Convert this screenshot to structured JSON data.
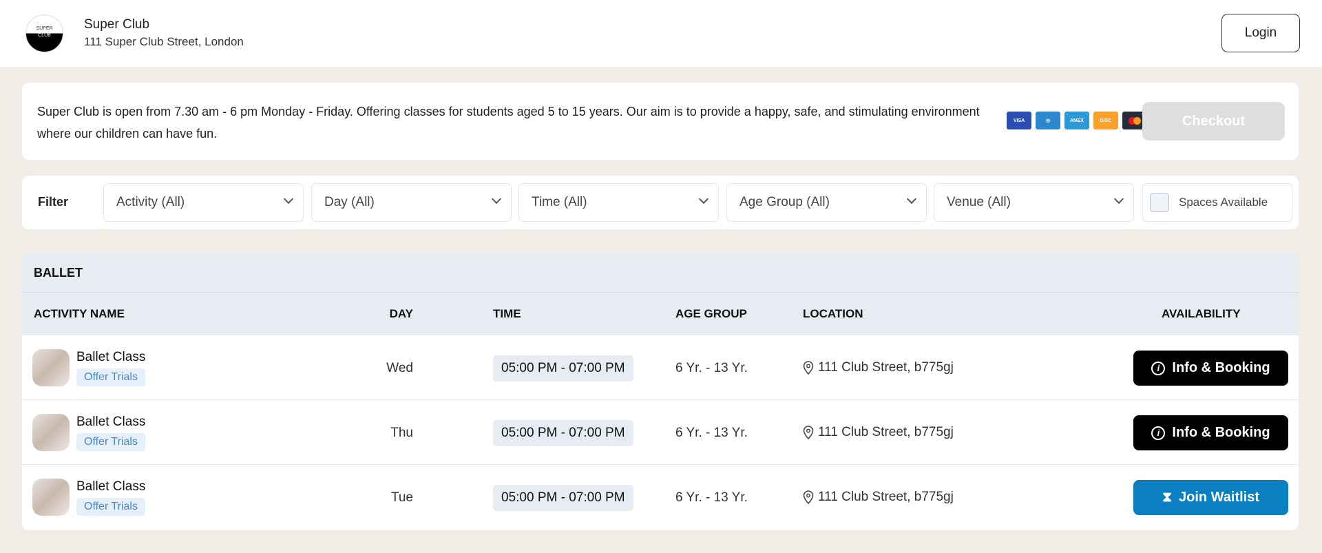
{
  "header": {
    "logo_text": [
      "SUPER",
      "CLUB"
    ],
    "name": "Super Club",
    "address": "111 Super Club Street, London",
    "login": "Login"
  },
  "info": {
    "text": "Super Club is open from 7.30 am - 6 pm Monday - Friday. Offering classes for students aged 5 to 15 years. Our aim is to provide a happy, safe, and stimulating environment where our children can have fun.",
    "payment_icons": [
      "visa-icon",
      "diners-icon",
      "amex-icon",
      "discover-icon",
      "mastercard-icon"
    ],
    "checkout": "Checkout"
  },
  "filter": {
    "label": "Filter",
    "selects": [
      "Activity (All)",
      "Day (All)",
      "Time (All)",
      "Age Group (All)",
      "Venue (All)"
    ],
    "spaces": "Spaces Available"
  },
  "table": {
    "section": "BALLET",
    "columns": [
      "ACTIVITY NAME",
      "DAY",
      "TIME",
      "AGE GROUP",
      "LOCATION",
      "AVAILABILITY"
    ],
    "rows": [
      {
        "name": "Ballet Class",
        "tag": "Offer Trials",
        "day": "Wed",
        "time": "05:00 PM - 07:00 PM",
        "age": "6 Yr. - 13 Yr.",
        "location": "111 Club Street, b775gj",
        "action": "Info & Booking"
      },
      {
        "name": "Ballet Class",
        "tag": "Offer Trials",
        "day": "Thu",
        "time": "05:00 PM - 07:00 PM",
        "age": "6 Yr. - 13 Yr.",
        "location": "111 Club Street, b775gj",
        "action": "Info & Booking"
      },
      {
        "name": "Ballet Class",
        "tag": "Offer Trials",
        "day": "Tue",
        "time": "05:00 PM - 07:00 PM",
        "age": "6 Yr. - 13 Yr.",
        "location": "111 Club Street, b775gj",
        "action": "Join Waitlist"
      }
    ]
  },
  "colors": {
    "background": "#f1ede6",
    "booking": "#000000",
    "waitlist": "#0a7fc1",
    "checkout_disabled": "#dedede"
  }
}
